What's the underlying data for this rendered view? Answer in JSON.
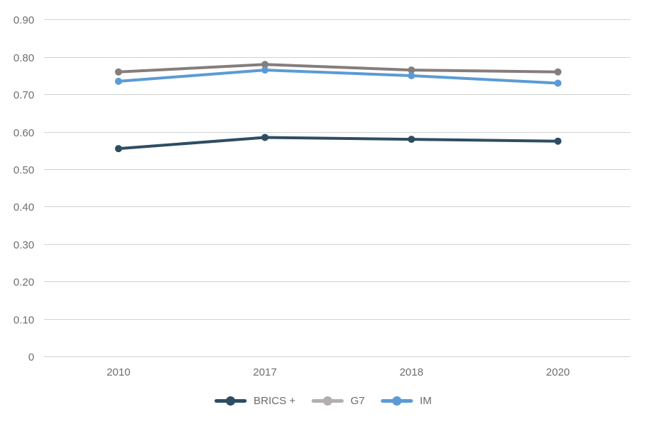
{
  "chart_data": {
    "type": "line",
    "title": "",
    "xlabel": "",
    "ylabel": "",
    "categories": [
      "2010",
      "2017",
      "2018",
      "2020"
    ],
    "series": [
      {
        "name": "BRICS +",
        "values": [
          0.555,
          0.585,
          0.58,
          0.575
        ],
        "color": "#2e4d63",
        "legend_color": "#2e4d63"
      },
      {
        "name": "G7",
        "values": [
          0.76,
          0.78,
          0.765,
          0.76
        ],
        "color": "#857d7c",
        "legend_color": "#b2afae"
      },
      {
        "name": "IM",
        "values": [
          0.735,
          0.765,
          0.75,
          0.73
        ],
        "color": "#5b9bd5",
        "legend_color": "#5b9bd5"
      }
    ],
    "ylim": [
      0,
      0.9
    ],
    "y_ticks": {
      "values": [
        0,
        0.1,
        0.2,
        0.3,
        0.4,
        0.5,
        0.6,
        0.7,
        0.8,
        0.9
      ],
      "labels": [
        "0",
        "0.10",
        "0.20",
        "0.30",
        "0.40",
        "0.50",
        "0.60",
        "0.70",
        "0.80",
        "0.90"
      ]
    },
    "grid": "horizontal",
    "gridline_color": "#d2d2d2",
    "tick_label_color": "#6e6e6e",
    "legend_position": "bottom"
  }
}
